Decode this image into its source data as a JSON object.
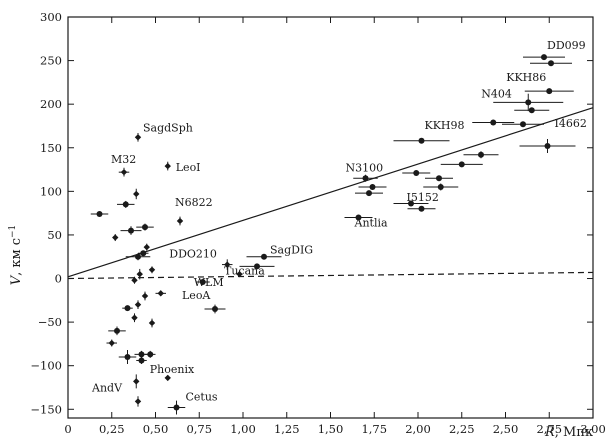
{
  "chart_data": {
    "type": "scatter",
    "xlabel": "R",
    "xunit": ", Мпк",
    "ylabel": "V",
    "yunit": ", км с",
    "yunit_sup": "−1",
    "xlim": [
      0,
      3.0
    ],
    "ylim": [
      -160,
      300
    ],
    "xticks": [
      "0",
      "0,25",
      "0,50",
      "0,75",
      "1,00",
      "1,25",
      "1,50",
      "1,75",
      "2,00",
      "2,25",
      "2,50",
      "2,75",
      "3,00"
    ],
    "xtick_values": [
      0,
      0.25,
      0.5,
      0.75,
      1.0,
      1.25,
      1.5,
      1.75,
      2.0,
      2.25,
      2.5,
      2.75,
      3.0
    ],
    "yticks": [
      "−150",
      "−100",
      "−50",
      "0",
      "50",
      "100",
      "150",
      "200",
      "250",
      "300"
    ],
    "ytick_values": [
      -150,
      -100,
      -50,
      0,
      50,
      100,
      150,
      200,
      250,
      300
    ],
    "grid": false,
    "lines": [
      {
        "style": "solid",
        "x": [
          0,
          3.0
        ],
        "y": [
          2,
          196
        ]
      },
      {
        "style": "dashed",
        "x": [
          0,
          3.0
        ],
        "y": [
          0,
          7
        ]
      }
    ],
    "points": [
      {
        "x": 0.4,
        "y": 162,
        "xerr": 0.01,
        "yerr": 5,
        "label": "SagdSph",
        "marker": "diamond"
      },
      {
        "x": 0.32,
        "y": 122,
        "xerr": 0.03,
        "yerr": 5,
        "label": "M32",
        "marker": "diamond"
      },
      {
        "x": 0.57,
        "y": 129,
        "xerr": 0.01,
        "yerr": 5,
        "label": "LeoI",
        "marker": "diamond"
      },
      {
        "x": 0.64,
        "y": 66,
        "xerr": 0.01,
        "yerr": 5,
        "label": "N6822",
        "marker": "diamond"
      },
      {
        "x": 0.91,
        "y": 16,
        "xerr": 0.03,
        "yerr": 6,
        "label": "DDO210",
        "marker": "diamond"
      },
      {
        "x": 1.12,
        "y": 25,
        "xerr": 0.1,
        "yerr": 3,
        "label": "SagDIG",
        "marker": "circle"
      },
      {
        "x": 1.08,
        "y": 14,
        "xerr": 0.1,
        "yerr": 3,
        "label": "Tucana",
        "marker": "circle"
      },
      {
        "x": 0.77,
        "y": -4,
        "xerr": 0.04,
        "yerr": 3,
        "label": "WLM",
        "marker": "circle"
      },
      {
        "x": 0.84,
        "y": -35,
        "xerr": 0.06,
        "yerr": 5,
        "label": "LeoA",
        "marker": "circle"
      },
      {
        "x": 0.57,
        "y": -114,
        "xerr": 0.01,
        "yerr": 3,
        "label": "Phoenix",
        "marker": "diamond"
      },
      {
        "x": 0.4,
        "y": -141,
        "xerr": 0.01,
        "yerr": 6,
        "label": "AndV",
        "marker": "diamond"
      },
      {
        "x": 0.62,
        "y": -148,
        "xerr": 0.05,
        "yerr": 8,
        "label": "Cetus",
        "marker": "circle"
      },
      {
        "x": 1.7,
        "y": 115,
        "xerr": 0.07,
        "yerr": 4,
        "label": "N3100",
        "marker": "circle"
      },
      {
        "x": 1.66,
        "y": 70,
        "xerr": 0.08,
        "yerr": 3,
        "label": "Antlia",
        "marker": "circle"
      },
      {
        "x": 2.02,
        "y": 80,
        "xerr": 0.08,
        "yerr": 3,
        "label": "I5152",
        "marker": "circle"
      },
      {
        "x": 2.02,
        "y": 158,
        "xerr": 0.16,
        "yerr": 3,
        "label": "KKH98",
        "marker": "circle"
      },
      {
        "x": 2.63,
        "y": 202,
        "xerr": 0.2,
        "yerr": 10,
        "label": "N404",
        "marker": "circle"
      },
      {
        "x": 2.75,
        "y": 215,
        "xerr": 0.14,
        "yerr": 3,
        "label": "KKH86",
        "marker": "circle"
      },
      {
        "x": 2.72,
        "y": 254,
        "xerr": 0.12,
        "yerr": 3,
        "label": "DD099",
        "marker": "circle"
      },
      {
        "x": 2.74,
        "y": 152,
        "xerr": 0.16,
        "yerr": 8,
        "label": "I4662",
        "marker": "circle"
      },
      {
        "x": 0.18,
        "y": 74,
        "xerr": 0.05,
        "yerr": 3,
        "label": "",
        "marker": "circle"
      },
      {
        "x": 0.27,
        "y": 47,
        "xerr": 0.01,
        "yerr": 4,
        "label": "",
        "marker": "diamond"
      },
      {
        "x": 0.33,
        "y": 85,
        "xerr": 0.05,
        "yerr": 4,
        "label": "",
        "marker": "circle"
      },
      {
        "x": 0.39,
        "y": 97,
        "xerr": 0.01,
        "yerr": 6,
        "label": "",
        "marker": "diamond"
      },
      {
        "x": 0.36,
        "y": 55,
        "xerr": 0.06,
        "yerr": 5,
        "label": "",
        "marker": "circle"
      },
      {
        "x": 0.44,
        "y": 59,
        "xerr": 0.05,
        "yerr": 4,
        "label": "",
        "marker": "circle"
      },
      {
        "x": 0.4,
        "y": 25,
        "xerr": 0.07,
        "yerr": 4,
        "label": "",
        "marker": "circle"
      },
      {
        "x": 0.45,
        "y": 36,
        "xerr": 0.01,
        "yerr": 4,
        "label": "",
        "marker": "diamond"
      },
      {
        "x": 0.43,
        "y": 29,
        "xerr": 0.03,
        "yerr": 3,
        "label": "",
        "marker": "circle"
      },
      {
        "x": 0.48,
        "y": 10,
        "xerr": 0.01,
        "yerr": 4,
        "label": "",
        "marker": "diamond"
      },
      {
        "x": 0.41,
        "y": 5,
        "xerr": 0.01,
        "yerr": 6,
        "label": "",
        "marker": "diamond"
      },
      {
        "x": 0.38,
        "y": -2,
        "xerr": 0.01,
        "yerr": 4,
        "label": "",
        "marker": "diamond"
      },
      {
        "x": 0.44,
        "y": -20,
        "xerr": 0.01,
        "yerr": 5,
        "label": "",
        "marker": "diamond"
      },
      {
        "x": 0.53,
        "y": -17,
        "xerr": 0.03,
        "yerr": 3,
        "label": "",
        "marker": "diamond"
      },
      {
        "x": 0.34,
        "y": -34,
        "xerr": 0.03,
        "yerr": 3,
        "label": "",
        "marker": "circle"
      },
      {
        "x": 0.4,
        "y": -30,
        "xerr": 0.01,
        "yerr": 5,
        "label": "",
        "marker": "diamond"
      },
      {
        "x": 0.38,
        "y": -45,
        "xerr": 0.01,
        "yerr": 5,
        "label": "",
        "marker": "diamond"
      },
      {
        "x": 0.48,
        "y": -51,
        "xerr": 0.01,
        "yerr": 5,
        "label": "",
        "marker": "diamond"
      },
      {
        "x": 0.28,
        "y": -60,
        "xerr": 0.05,
        "yerr": 5,
        "label": "",
        "marker": "circle"
      },
      {
        "x": 0.25,
        "y": -74,
        "xerr": 0.03,
        "yerr": 4,
        "label": "",
        "marker": "diamond"
      },
      {
        "x": 0.34,
        "y": -90,
        "xerr": 0.05,
        "yerr": 8,
        "label": "",
        "marker": "circle"
      },
      {
        "x": 0.42,
        "y": -87,
        "xerr": 0.04,
        "yerr": 4,
        "label": "",
        "marker": "circle"
      },
      {
        "x": 0.47,
        "y": -87,
        "xerr": 0.03,
        "yerr": 4,
        "label": "",
        "marker": "circle"
      },
      {
        "x": 0.42,
        "y": -94,
        "xerr": 0.03,
        "yerr": 4,
        "label": "",
        "marker": "circle"
      },
      {
        "x": 0.39,
        "y": -118,
        "xerr": 0.01,
        "yerr": 8,
        "label": "",
        "marker": "diamond"
      },
      {
        "x": 0.98,
        "y": 5,
        "xerr": 0.01,
        "yerr": 3,
        "label": "",
        "marker": "diamond"
      },
      {
        "x": 1.74,
        "y": 105,
        "xerr": 0.08,
        "yerr": 3,
        "label": "",
        "marker": "circle"
      },
      {
        "x": 1.72,
        "y": 98,
        "xerr": 0.08,
        "yerr": 3,
        "label": "",
        "marker": "circle"
      },
      {
        "x": 1.96,
        "y": 86,
        "xerr": 0.1,
        "yerr": 3,
        "label": "",
        "marker": "circle"
      },
      {
        "x": 1.99,
        "y": 121,
        "xerr": 0.08,
        "yerr": 3,
        "label": "",
        "marker": "circle"
      },
      {
        "x": 2.12,
        "y": 115,
        "xerr": 0.08,
        "yerr": 3,
        "label": "",
        "marker": "circle"
      },
      {
        "x": 2.13,
        "y": 105,
        "xerr": 0.1,
        "yerr": 4,
        "label": "",
        "marker": "circle"
      },
      {
        "x": 2.25,
        "y": 131,
        "xerr": 0.12,
        "yerr": 3,
        "label": "",
        "marker": "circle"
      },
      {
        "x": 2.36,
        "y": 142,
        "xerr": 0.1,
        "yerr": 4,
        "label": "",
        "marker": "circle"
      },
      {
        "x": 2.43,
        "y": 179,
        "xerr": 0.12,
        "yerr": 3,
        "label": "",
        "marker": "circle"
      },
      {
        "x": 2.6,
        "y": 177,
        "xerr": 0.12,
        "yerr": 3,
        "label": "",
        "marker": "circle"
      },
      {
        "x": 2.65,
        "y": 193,
        "xerr": 0.1,
        "yerr": 3,
        "label": "",
        "marker": "circle"
      },
      {
        "x": 2.76,
        "y": 247,
        "xerr": 0.12,
        "yerr": 3,
        "label": "",
        "marker": "circle"
      }
    ]
  }
}
